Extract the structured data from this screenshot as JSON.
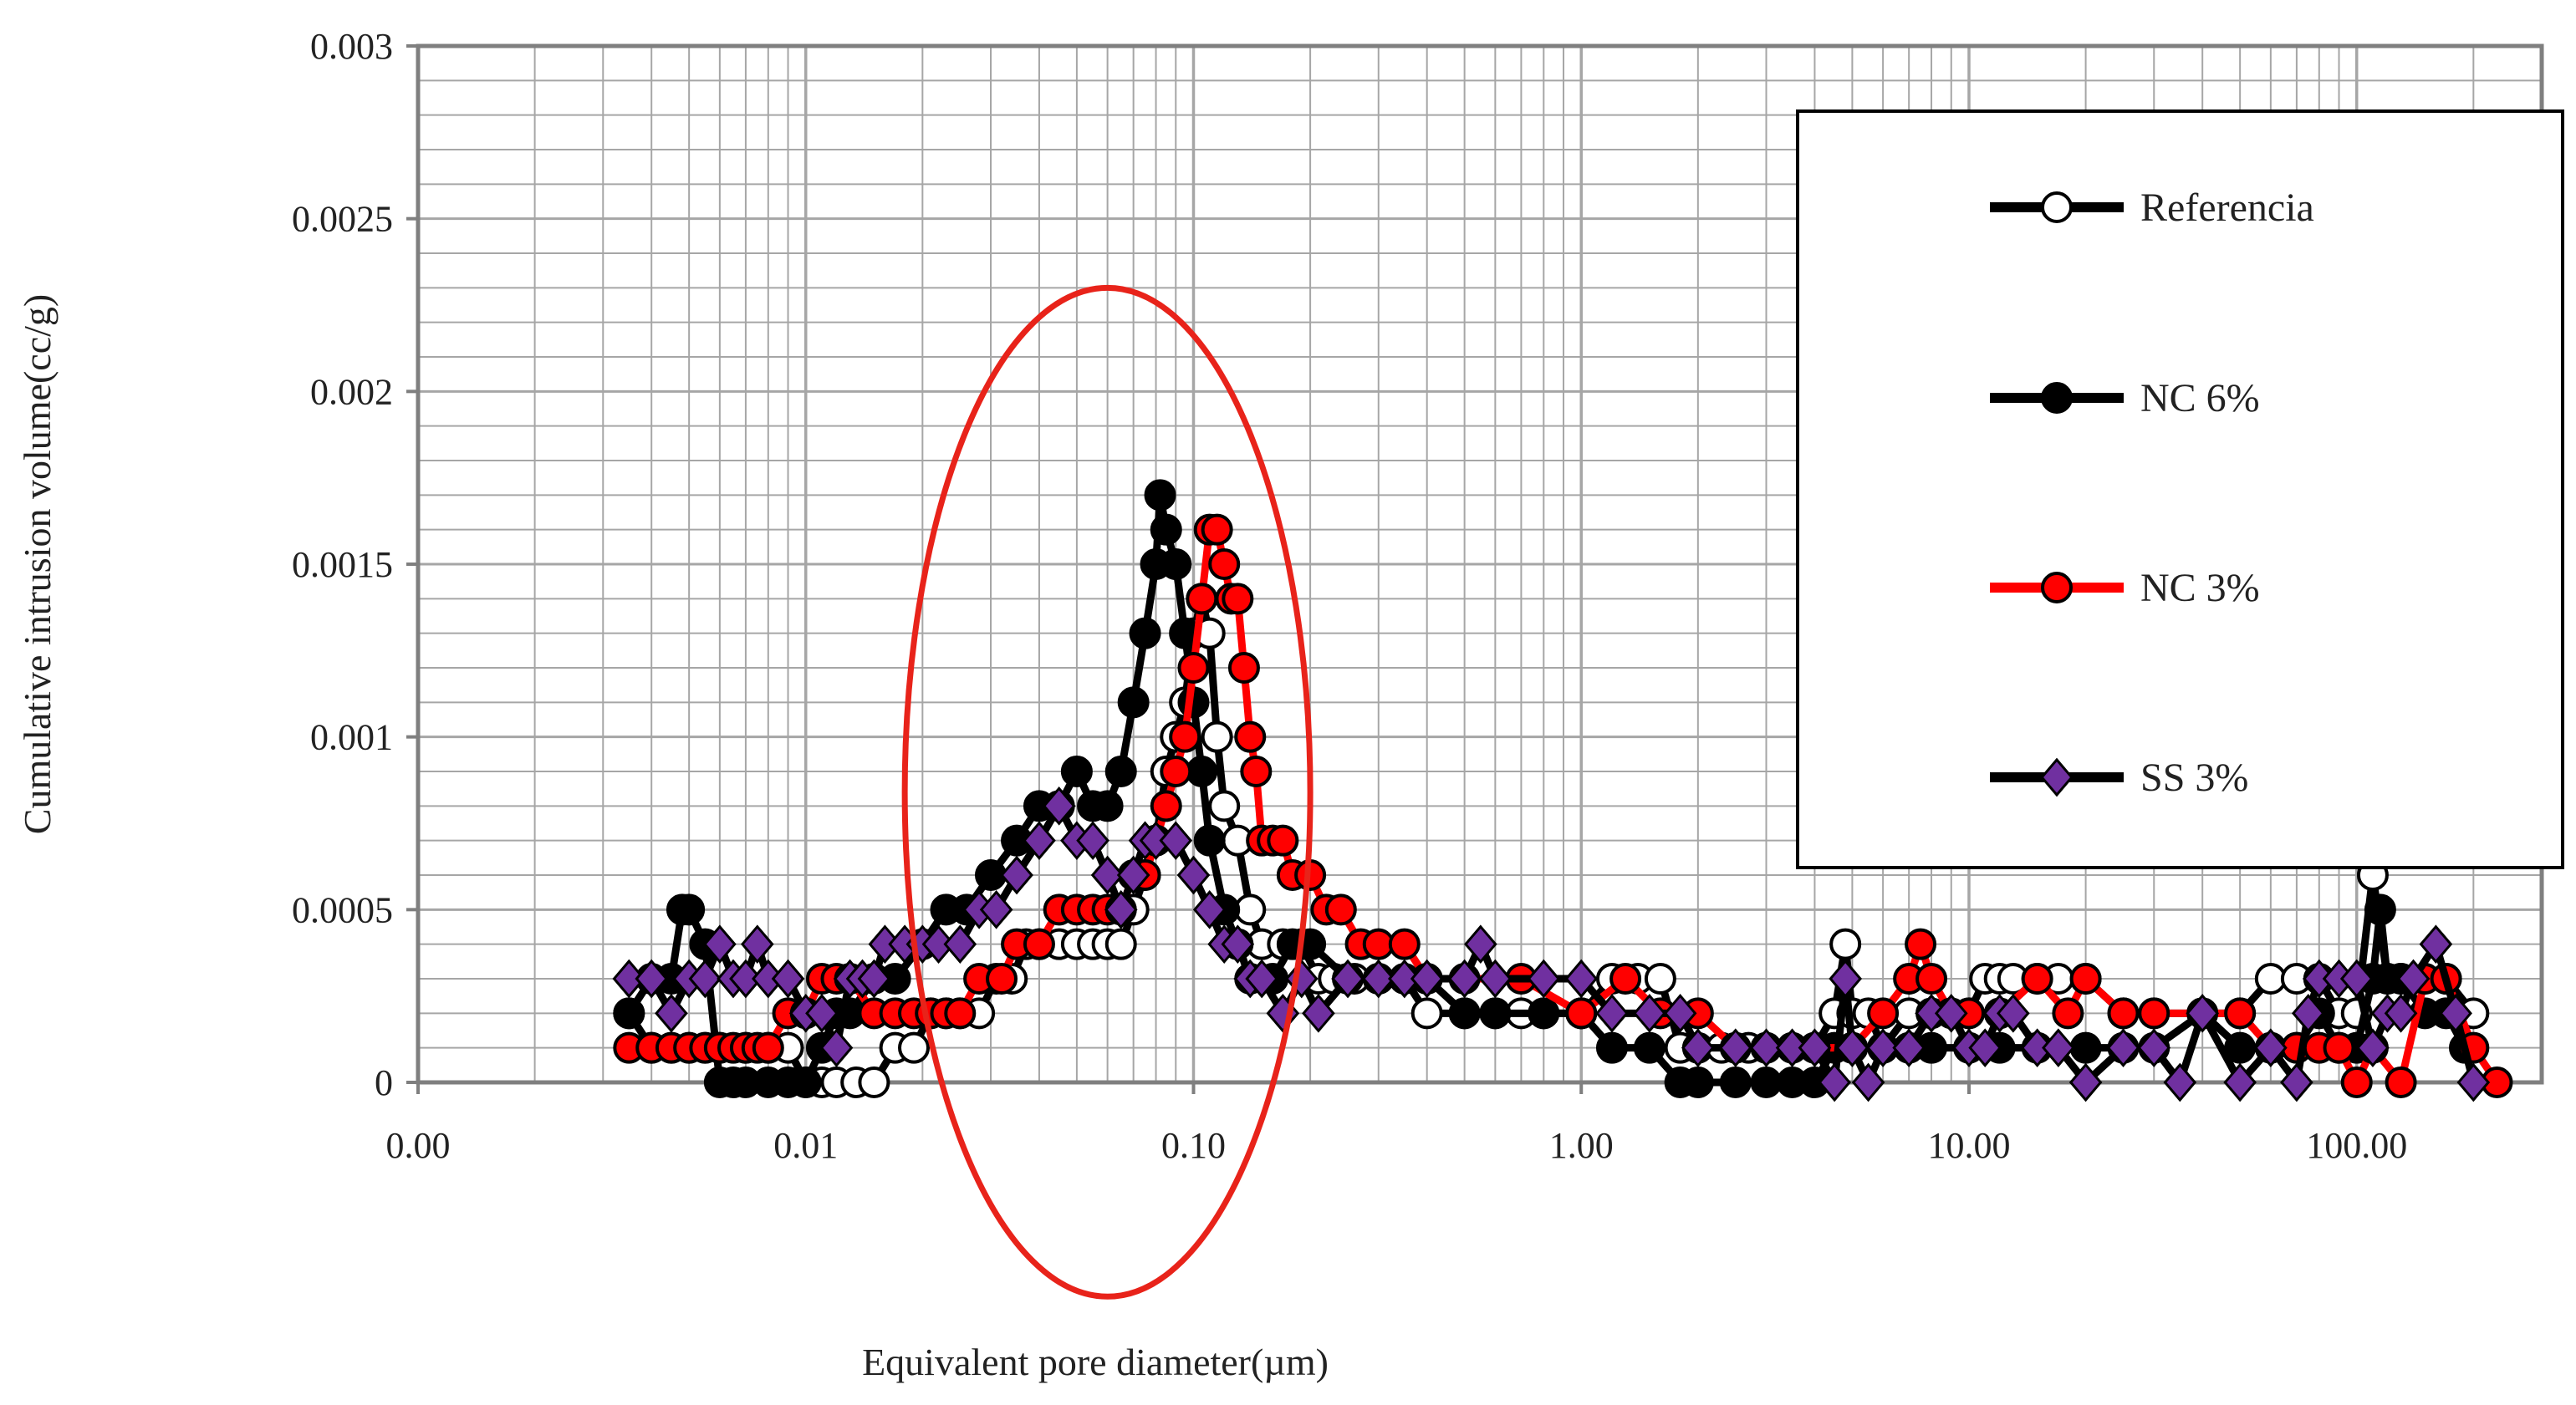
{
  "chart_data": {
    "type": "scatter",
    "title": "",
    "xlabel": "Equivalent pore diameter(µm)",
    "ylabel": "Cumulative intrusion volume(cc/g)",
    "x_scale": "log",
    "xlim": [
      0.001,
      300
    ],
    "ylim": [
      0,
      0.003
    ],
    "x_ticks": [
      0.001,
      0.01,
      0.1,
      1,
      10,
      100
    ],
    "x_tick_labels": [
      "0.00",
      "0.01",
      "0.10",
      "1.00",
      "10.00",
      "100.00"
    ],
    "y_ticks": [
      0,
      0.0005,
      0.001,
      0.0015,
      0.002,
      0.0025,
      0.003
    ],
    "y_tick_labels": [
      "0",
      "0.0005",
      "0.001",
      "0.0015",
      "0.002",
      "0.0025",
      "0.003"
    ],
    "grid": true,
    "legend_position": "top-right",
    "colors": {
      "black": "#000000",
      "red": "#ff0000",
      "purple": "#7030a0",
      "ellipse": "#e8231a"
    },
    "annotation": {
      "shape": "ellipse",
      "x_range": [
        0.018,
        0.2
      ],
      "y_range": [
        -0.00062,
        0.0023
      ]
    },
    "series": [
      {
        "name": "Referencia",
        "line_color": "#000000",
        "marker": "circle-open",
        "x": [
          0.0035,
          0.004,
          0.0045,
          0.005,
          0.0055,
          0.006,
          0.007,
          0.008,
          0.009,
          0.01,
          0.011,
          0.012,
          0.0135,
          0.015,
          0.017,
          0.019,
          0.021,
          0.023,
          0.025,
          0.028,
          0.031,
          0.034,
          0.037,
          0.04,
          0.045,
          0.05,
          0.055,
          0.06,
          0.065,
          0.07,
          0.075,
          0.08,
          0.085,
          0.09,
          0.095,
          0.1,
          0.105,
          0.11,
          0.115,
          0.12,
          0.13,
          0.14,
          0.15,
          0.17,
          0.19,
          0.21,
          0.23,
          0.26,
          0.3,
          0.35,
          0.4,
          0.5,
          0.6,
          0.7,
          0.8,
          1.0,
          1.2,
          1.4,
          1.6,
          1.8,
          2.0,
          2.3,
          2.7,
          3.0,
          3.5,
          4.0,
          4.5,
          4.8,
          5.0,
          5.5,
          6.0,
          7.0,
          8.0,
          10.0,
          11.0,
          12.0,
          13.0,
          15.0,
          17.0,
          20.0,
          25.0,
          30.0,
          40.0,
          50.0,
          60.0,
          70.0,
          80.0,
          90.0,
          100.0,
          110.0,
          120.0,
          130.0,
          150.0,
          170.0,
          200.0
        ],
        "y": [
          0.0002,
          0.0001,
          0.0001,
          0.0001,
          0.0001,
          0.0001,
          0.0001,
          0.0001,
          0.0001,
          0.0,
          0.0,
          0.0,
          0.0,
          0.0,
          0.0001,
          0.0001,
          0.0002,
          0.0002,
          0.0002,
          0.0002,
          0.0003,
          0.0003,
          0.0004,
          0.0004,
          0.0004,
          0.0004,
          0.0004,
          0.0004,
          0.0004,
          0.0005,
          0.0006,
          0.0007,
          0.0009,
          0.001,
          0.0011,
          0.0013,
          0.0014,
          0.0013,
          0.001,
          0.0008,
          0.0007,
          0.0005,
          0.0004,
          0.0004,
          0.0004,
          0.0003,
          0.0003,
          0.0003,
          0.0003,
          0.0003,
          0.0002,
          0.0002,
          0.0002,
          0.0002,
          0.0002,
          0.0002,
          0.0003,
          0.0003,
          0.0003,
          0.0001,
          0.0001,
          0.0001,
          0.0001,
          0.0001,
          0.0001,
          0.0001,
          0.0002,
          0.0004,
          0.0002,
          0.0002,
          0.0001,
          0.0002,
          0.0002,
          0.0002,
          0.0003,
          0.0003,
          0.0003,
          0.0003,
          0.0003,
          0.0003,
          0.0002,
          0.0002,
          0.0002,
          0.0002,
          0.0003,
          0.0003,
          0.0003,
          0.0002,
          0.0002,
          0.0006,
          0.0003,
          0.0003,
          0.0003,
          0.0003,
          0.0002
        ]
      },
      {
        "name": "NC 6%",
        "line_color": "#000000",
        "marker": "circle-filled",
        "x": [
          0.0035,
          0.004,
          0.0045,
          0.0048,
          0.005,
          0.0055,
          0.006,
          0.0065,
          0.007,
          0.008,
          0.009,
          0.01,
          0.011,
          0.012,
          0.013,
          0.015,
          0.017,
          0.02,
          0.023,
          0.026,
          0.03,
          0.035,
          0.04,
          0.045,
          0.05,
          0.055,
          0.06,
          0.065,
          0.07,
          0.075,
          0.08,
          0.082,
          0.085,
          0.09,
          0.095,
          0.1,
          0.105,
          0.11,
          0.12,
          0.13,
          0.14,
          0.16,
          0.18,
          0.2,
          0.25,
          0.3,
          0.4,
          0.5,
          0.6,
          0.8,
          1.0,
          1.2,
          1.5,
          1.8,
          2.0,
          2.5,
          3.0,
          3.5,
          4.0,
          4.5,
          5.0,
          6.0,
          7.0,
          8.0,
          10.0,
          12.0,
          15.0,
          20.0,
          25.0,
          30.0,
          40.0,
          50.0,
          60.0,
          70.0,
          80.0,
          90.0,
          100.0,
          110.0,
          115.0,
          120.0,
          130.0,
          150.0,
          170.0,
          190.0
        ],
        "y": [
          0.0002,
          0.0003,
          0.0003,
          0.0005,
          0.0005,
          0.0004,
          0.0,
          0.0,
          0.0,
          0.0,
          0.0,
          0.0,
          0.0001,
          0.0002,
          0.0002,
          0.0003,
          0.0003,
          0.0004,
          0.0005,
          0.0005,
          0.0006,
          0.0007,
          0.0008,
          0.0008,
          0.0009,
          0.0008,
          0.0008,
          0.0009,
          0.0011,
          0.0013,
          0.0015,
          0.0017,
          0.0016,
          0.0015,
          0.0013,
          0.0011,
          0.0009,
          0.0007,
          0.0005,
          0.0004,
          0.0003,
          0.0003,
          0.0004,
          0.0004,
          0.0003,
          0.0003,
          0.0003,
          0.0002,
          0.0002,
          0.0002,
          0.0002,
          0.0001,
          0.0001,
          0.0,
          0.0,
          0.0,
          0.0,
          0.0,
          0.0,
          0.0001,
          0.0001,
          0.0001,
          0.0001,
          0.0001,
          0.0001,
          0.0001,
          0.0001,
          0.0001,
          0.0001,
          0.0001,
          0.0002,
          0.0001,
          0.0001,
          0.0001,
          0.0002,
          0.0001,
          0.0001,
          0.0003,
          0.0005,
          0.0003,
          0.0003,
          0.0002,
          0.0002,
          0.0001
        ]
      },
      {
        "name": "NC 3%",
        "line_color": "#ff0000",
        "marker": "circle-red",
        "x": [
          0.0035,
          0.004,
          0.0045,
          0.005,
          0.0055,
          0.006,
          0.0065,
          0.007,
          0.0075,
          0.008,
          0.009,
          0.01,
          0.011,
          0.012,
          0.013,
          0.015,
          0.017,
          0.019,
          0.021,
          0.023,
          0.025,
          0.028,
          0.032,
          0.035,
          0.04,
          0.045,
          0.05,
          0.055,
          0.06,
          0.065,
          0.07,
          0.075,
          0.08,
          0.085,
          0.09,
          0.095,
          0.1,
          0.105,
          0.11,
          0.115,
          0.12,
          0.125,
          0.13,
          0.135,
          0.14,
          0.145,
          0.15,
          0.16,
          0.17,
          0.18,
          0.2,
          0.22,
          0.24,
          0.27,
          0.3,
          0.35,
          0.4,
          0.5,
          0.7,
          1.0,
          1.3,
          1.6,
          2.0,
          2.5,
          3.0,
          4.0,
          5.0,
          6.0,
          7.0,
          7.5,
          8.0,
          9.0,
          10.0,
          12.0,
          15.0,
          18.0,
          20.0,
          25.0,
          30.0,
          40.0,
          50.0,
          60.0,
          70.0,
          80.0,
          90.0,
          100.0,
          110.0,
          130.0,
          150.0,
          170.0,
          200.0,
          230.0
        ],
        "y": [
          0.0001,
          0.0001,
          0.0001,
          0.0001,
          0.0001,
          0.0001,
          0.0001,
          0.0001,
          0.0001,
          0.0001,
          0.0002,
          0.0002,
          0.0003,
          0.0003,
          0.0003,
          0.0002,
          0.0002,
          0.0002,
          0.0002,
          0.0002,
          0.0002,
          0.0003,
          0.0003,
          0.0004,
          0.0004,
          0.0005,
          0.0005,
          0.0005,
          0.0005,
          0.0005,
          0.0006,
          0.0006,
          0.0007,
          0.0008,
          0.0009,
          0.001,
          0.0012,
          0.0014,
          0.0016,
          0.0016,
          0.0015,
          0.0014,
          0.0014,
          0.0012,
          0.001,
          0.0009,
          0.0007,
          0.0007,
          0.0007,
          0.0006,
          0.0006,
          0.0005,
          0.0005,
          0.0004,
          0.0004,
          0.0004,
          0.0003,
          0.0003,
          0.0003,
          0.0002,
          0.0003,
          0.0002,
          0.0002,
          0.0001,
          0.0001,
          0.0001,
          0.0001,
          0.0002,
          0.0003,
          0.0004,
          0.0003,
          0.0002,
          0.0002,
          0.0002,
          0.0003,
          0.0002,
          0.0003,
          0.0002,
          0.0002,
          0.0002,
          0.0002,
          0.0001,
          0.0001,
          0.0001,
          0.0001,
          0.0,
          0.0001,
          0.0,
          0.0003,
          0.0003,
          0.0001,
          0.0
        ]
      },
      {
        "name": "SS 3%",
        "line_color": "#000000",
        "marker": "diamond-purple",
        "x": [
          0.0035,
          0.004,
          0.0045,
          0.005,
          0.0055,
          0.006,
          0.0065,
          0.007,
          0.0075,
          0.008,
          0.009,
          0.01,
          0.011,
          0.012,
          0.013,
          0.014,
          0.015,
          0.016,
          0.018,
          0.02,
          0.022,
          0.025,
          0.028,
          0.031,
          0.035,
          0.04,
          0.045,
          0.05,
          0.055,
          0.06,
          0.065,
          0.07,
          0.075,
          0.08,
          0.09,
          0.1,
          0.11,
          0.12,
          0.13,
          0.14,
          0.15,
          0.17,
          0.19,
          0.21,
          0.25,
          0.3,
          0.35,
          0.4,
          0.5,
          0.55,
          0.6,
          0.8,
          1.0,
          1.2,
          1.5,
          1.8,
          2.0,
          2.5,
          3.0,
          3.5,
          4.0,
          4.5,
          4.8,
          5.0,
          5.5,
          6.0,
          7.0,
          8.0,
          9.0,
          10.0,
          11.0,
          12.0,
          13.0,
          15.0,
          17.0,
          20.0,
          25.0,
          30.0,
          35.0,
          40.0,
          50.0,
          60.0,
          70.0,
          75.0,
          80.0,
          90.0,
          100.0,
          110.0,
          120.0,
          130.0,
          140.0,
          160.0,
          180.0,
          200.0
        ],
        "y": [
          0.0003,
          0.0003,
          0.0002,
          0.0003,
          0.0003,
          0.0004,
          0.0003,
          0.0003,
          0.0004,
          0.0003,
          0.0003,
          0.0002,
          0.0002,
          0.0001,
          0.0003,
          0.0003,
          0.0003,
          0.0004,
          0.0004,
          0.0004,
          0.0004,
          0.0004,
          0.0005,
          0.0005,
          0.0006,
          0.0007,
          0.0008,
          0.0007,
          0.0007,
          0.0006,
          0.0005,
          0.0006,
          0.0007,
          0.0007,
          0.0007,
          0.0006,
          0.0005,
          0.0004,
          0.0004,
          0.0003,
          0.0003,
          0.0002,
          0.0003,
          0.0002,
          0.0003,
          0.0003,
          0.0003,
          0.0003,
          0.0003,
          0.0004,
          0.0003,
          0.0003,
          0.0003,
          0.0002,
          0.0002,
          0.0002,
          0.0001,
          0.0001,
          0.0001,
          0.0001,
          0.0001,
          0.0,
          0.0003,
          0.0001,
          0.0,
          0.0001,
          0.0001,
          0.0002,
          0.0002,
          0.0001,
          0.0001,
          0.0002,
          0.0002,
          0.0001,
          0.0001,
          0.0,
          0.0001,
          0.0001,
          0.0,
          0.0002,
          0.0,
          0.0001,
          0.0,
          0.0002,
          0.0003,
          0.0003,
          0.0003,
          0.0001,
          0.0002,
          0.0002,
          0.0003,
          0.0004,
          0.0002,
          0.0
        ]
      }
    ]
  }
}
